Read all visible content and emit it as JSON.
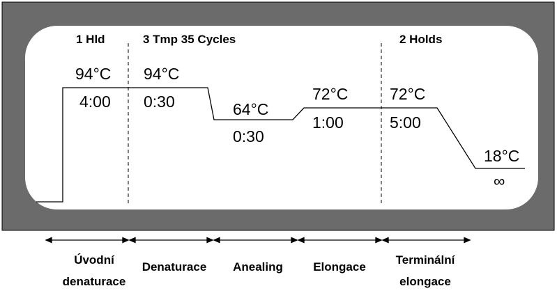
{
  "colors": {
    "frame": "#6b6b6b",
    "panel": "#ffffff",
    "line": "#000000",
    "text": "#000000"
  },
  "headers": [
    {
      "text": "1 Hld"
    },
    {
      "text": "3 Tmp 35 Cycles"
    },
    {
      "text": "2 Holds"
    }
  ],
  "steps": [
    {
      "temp": "94°C",
      "time": "4:00"
    },
    {
      "temp": "94°C",
      "time": "0:30"
    },
    {
      "temp": "64°C",
      "time": "0:30"
    },
    {
      "temp": "72°C",
      "time": "1:00"
    },
    {
      "temp": "72°C",
      "time": "5:00"
    },
    {
      "temp": "18°C",
      "time": "∞"
    }
  ],
  "phases": [
    {
      "lines": [
        "Úvodní",
        "denaturace"
      ]
    },
    {
      "lines": [
        "Denaturace"
      ]
    },
    {
      "lines": [
        "Anealing"
      ]
    },
    {
      "lines": [
        "Elongace"
      ]
    },
    {
      "lines": [
        "Terminální",
        "elongace"
      ]
    }
  ]
}
